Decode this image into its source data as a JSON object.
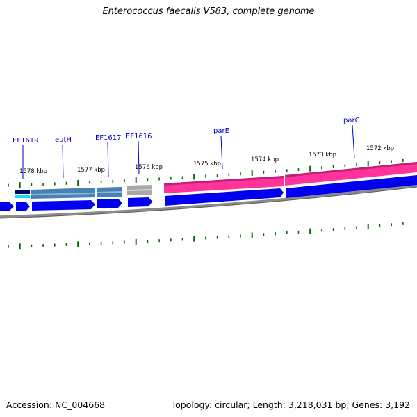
{
  "title": "Enterococcus faecalis V583, complete genome",
  "accession": "Accession: NC_004668",
  "topology": "Topology: circular; Length: 3,218,031 bp; Genes: 3,192",
  "colors": {
    "plus_strand": "#ff3399",
    "minus_strand_blue": "#0000ee",
    "steelblue_gene": "#4682b4",
    "grey_gene": "#b0b0b0",
    "navy_gene": "#000066",
    "cyan_gene": "#00e5ee",
    "tick": "#006600",
    "backbone": "#808080",
    "label": "#0000cc"
  },
  "tick_labels": [
    "1578 kbp",
    "1577 kbp",
    "1576 kbp",
    "1575 kbp",
    "1574 kbp",
    "1573 kbp",
    "1572 kbp"
  ],
  "gene_labels": [
    "EF1619",
    "eutH",
    "EF1617",
    "EF1616",
    "parE",
    "parC"
  ]
}
